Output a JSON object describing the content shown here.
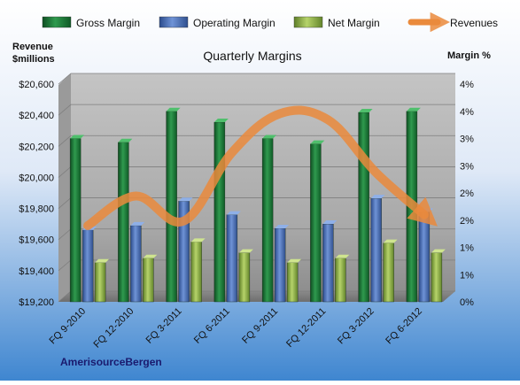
{
  "chart_data": {
    "type": "bar",
    "title": "Quarterly Margins",
    "company": "AmerisourceBergen",
    "categories": [
      "FQ 9-2010",
      "FQ 12-2010",
      "FQ 3-2011",
      "FQ 6-2011",
      "FQ 9-2011",
      "FQ 12-2011",
      "FQ 3-2012",
      "FQ 6-2012"
    ],
    "left_axis": {
      "title_line1": "Revenue",
      "title_line2": "$millions",
      "ylim": [
        19200,
        20600
      ],
      "ticks": [
        19200,
        19400,
        19600,
        19800,
        20000,
        20200,
        20400,
        20600
      ],
      "tick_labels": [
        "$19,200",
        "$19,400",
        "$19,600",
        "$19,800",
        "$20,000",
        "$20,200",
        "$20,400",
        "$20,600"
      ]
    },
    "right_axis": {
      "title": "Margin %",
      "ylim": [
        0,
        4
      ],
      "tick_labels": [
        "0%",
        "1%",
        "1%",
        "2%",
        "2%",
        "3%",
        "3%",
        "4%",
        "4%"
      ]
    },
    "series": [
      {
        "name": "Gross Margin",
        "type": "bar",
        "axis": "right",
        "color": "#1f7a3a",
        "values": [
          3.0,
          2.93,
          3.5,
          3.3,
          3.0,
          2.9,
          3.48,
          3.5
        ]
      },
      {
        "name": "Operating Margin",
        "type": "bar",
        "axis": "right",
        "color": "#4a6fb5",
        "values": [
          1.32,
          1.4,
          1.85,
          1.6,
          1.35,
          1.43,
          1.9,
          1.65
        ]
      },
      {
        "name": "Net Margin",
        "type": "bar",
        "axis": "right",
        "color": "#8fb04a",
        "values": [
          0.72,
          0.8,
          1.1,
          0.9,
          0.72,
          0.8,
          1.08,
          0.9
        ]
      },
      {
        "name": "Revenues",
        "type": "line",
        "axis": "left",
        "color": "#ea8a3c",
        "values": [
          19690,
          19880,
          19720,
          20160,
          20410,
          20370,
          20030,
          19760
        ]
      }
    ],
    "legend": {
      "placement": "top"
    },
    "grid": true
  }
}
